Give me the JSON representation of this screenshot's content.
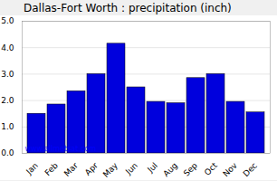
{
  "chart_data": {
    "type": "bar",
    "title": "Dallas-Fort Worth : precipitation (inch)",
    "categories": [
      "Jan",
      "Feb",
      "Mar",
      "Apr",
      "May",
      "Jun",
      "Jul",
      "Aug",
      "Sep",
      "Oct",
      "Nov",
      "Dec"
    ],
    "values": [
      1.5,
      1.85,
      2.35,
      3.0,
      4.15,
      2.5,
      1.95,
      1.9,
      2.85,
      3.0,
      1.95,
      1.55
    ],
    "color": "#0000dd",
    "ylim": [
      0,
      5
    ],
    "yticks": [
      0,
      1,
      2,
      3,
      4,
      5
    ],
    "grid": true,
    "annotations": [
      "www.allmetsat.com"
    ]
  }
}
